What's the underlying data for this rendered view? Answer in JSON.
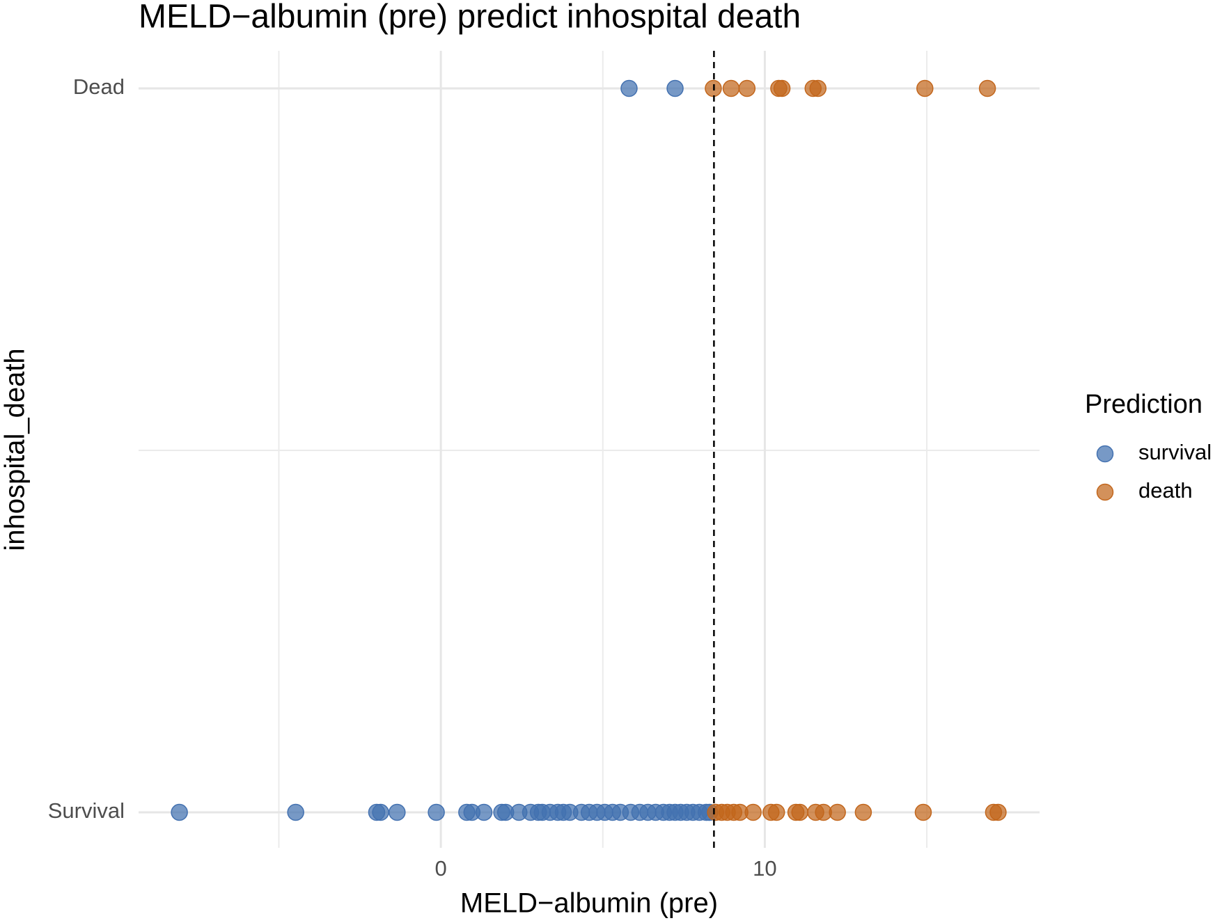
{
  "chart_data": {
    "type": "scatter",
    "title": "MELD−albumin (pre) predict inhospital death",
    "x_label": "MELD−albumin (pre)",
    "y_label": "inhospital_death",
    "categories": [
      "Survival",
      "Dead"
    ],
    "xlim": [
      -9.33,
      18.48
    ],
    "xticks": [
      0,
      10
    ],
    "x_minor_ticks": [
      -5,
      5,
      15
    ],
    "grid": true,
    "threshold": 8.43,
    "legend_title": "Prediction",
    "legend_position": "right",
    "series": [
      {
        "name": "survival",
        "color": "#4371b0",
        "values": [
          5.81,
          7.23,
          -8.07,
          -4.48,
          -1.98,
          -1.86,
          -1.35,
          -0.14,
          0.8,
          0.96,
          1.33,
          1.88,
          2.0,
          2.41,
          2.77,
          3.01,
          3.13,
          3.37,
          3.61,
          3.78,
          3.98,
          4.34,
          4.58,
          4.82,
          5.06,
          5.3,
          5.54,
          5.86,
          6.14,
          6.39,
          6.63,
          6.87,
          7.06,
          7.23,
          7.4,
          7.59,
          7.78,
          7.98,
          8.19,
          8.3
        ],
        "groups": [
          "Dead",
          "Dead",
          "Survival",
          "Survival",
          "Survival",
          "Survival",
          "Survival",
          "Survival",
          "Survival",
          "Survival",
          "Survival",
          "Survival",
          "Survival",
          "Survival",
          "Survival",
          "Survival",
          "Survival",
          "Survival",
          "Survival",
          "Survival",
          "Survival",
          "Survival",
          "Survival",
          "Survival",
          "Survival",
          "Survival",
          "Survival",
          "Survival",
          "Survival",
          "Survival",
          "Survival",
          "Survival",
          "Survival",
          "Survival",
          "Survival",
          "Survival",
          "Survival",
          "Survival",
          "Survival",
          "Survival"
        ]
      },
      {
        "name": "death",
        "color": "#c2661c",
        "values": [
          8.41,
          8.96,
          9.45,
          10.43,
          10.53,
          11.49,
          11.64,
          14.94,
          16.87,
          8.48,
          8.67,
          8.84,
          9.04,
          9.23,
          9.64,
          10.19,
          10.36,
          10.96,
          11.08,
          11.57,
          11.81,
          12.24,
          13.04,
          14.89,
          17.06,
          17.2
        ],
        "groups": [
          "Dead",
          "Dead",
          "Dead",
          "Dead",
          "Dead",
          "Dead",
          "Dead",
          "Dead",
          "Dead",
          "Survival",
          "Survival",
          "Survival",
          "Survival",
          "Survival",
          "Survival",
          "Survival",
          "Survival",
          "Survival",
          "Survival",
          "Survival",
          "Survival",
          "Survival",
          "Survival",
          "Survival",
          "Survival",
          "Survival"
        ]
      }
    ]
  }
}
